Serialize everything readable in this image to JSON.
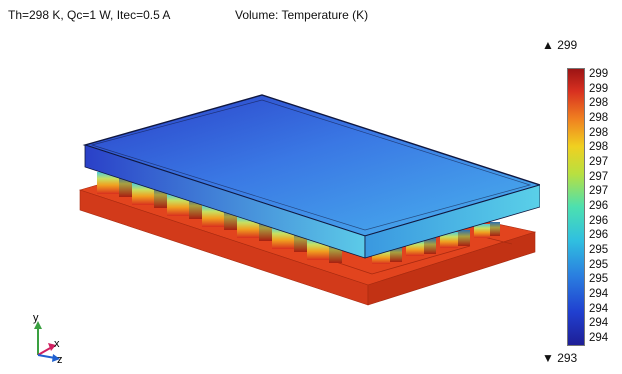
{
  "header": {
    "info": "Th=298 K, Qc=1 W, Itec=0.5 A",
    "title": "Volume: Temperature (K)"
  },
  "colorbar": {
    "max_label": "▲ 299",
    "min_label": "▼ 293",
    "ticks": [
      "299",
      "299",
      "298",
      "298",
      "298",
      "298",
      "297",
      "297",
      "297",
      "296",
      "296",
      "296",
      "295",
      "295",
      "295",
      "294",
      "294",
      "294",
      "294"
    ],
    "colors": {
      "max": "#9c1414",
      "mid": "#4ce0b0",
      "min": "#1e1e96"
    }
  },
  "axes": {
    "x_label": "x",
    "y_label": "y",
    "z_label": "z",
    "colors": {
      "x": "#d02060",
      "y": "#3aa040",
      "z": "#2060d0"
    }
  },
  "model": {
    "top_plate_color": "#3a6ee0",
    "bottom_plate_color": "#e2401e",
    "pellet_count_visible": 12
  }
}
